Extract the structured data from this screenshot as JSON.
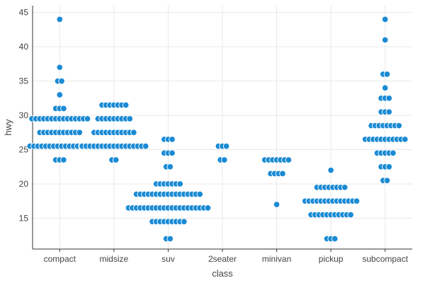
{
  "chart_data": {
    "type": "scatter",
    "subtype": "beeswarm",
    "title": "",
    "xlabel": "class",
    "ylabel": "hwy",
    "ylim": [
      10.5,
      46
    ],
    "yticks": [
      15,
      20,
      25,
      30,
      35,
      40,
      45
    ],
    "grid": true,
    "colors": {
      "point": "#1a8ad4",
      "point_edge": "#ffffff",
      "grid": "#e8e8e8",
      "axis": "#333333"
    },
    "categories": [
      "compact",
      "midsize",
      "suv",
      "2seater",
      "minivan",
      "pickup",
      "subcompact"
    ],
    "groups": [
      {
        "name": "compact",
        "values": [
          {
            "y": 44,
            "n": 1
          },
          {
            "y": 37,
            "n": 1
          },
          {
            "y": 35,
            "n": 2
          },
          {
            "y": 33,
            "n": 1
          },
          {
            "y": 31,
            "n": 3
          },
          {
            "y": 29.5,
            "n": 15
          },
          {
            "y": 27.5,
            "n": 11
          },
          {
            "y": 25.5,
            "n": 16
          },
          {
            "y": 23.5,
            "n": 3
          }
        ]
      },
      {
        "name": "midsize",
        "values": [
          {
            "y": 31.5,
            "n": 7
          },
          {
            "y": 29.5,
            "n": 9
          },
          {
            "y": 27.5,
            "n": 11
          },
          {
            "y": 25.5,
            "n": 17
          },
          {
            "y": 23.5,
            "n": 2
          }
        ]
      },
      {
        "name": "suv",
        "values": [
          {
            "y": 26.5,
            "n": 3
          },
          {
            "y": 24.5,
            "n": 3
          },
          {
            "y": 22.5,
            "n": 2
          },
          {
            "y": 20,
            "n": 7
          },
          {
            "y": 18.5,
            "n": 17
          },
          {
            "y": 16.5,
            "n": 21
          },
          {
            "y": 14.5,
            "n": 9
          },
          {
            "y": 12,
            "n": 2
          }
        ]
      },
      {
        "name": "2seater",
        "values": [
          {
            "y": 25.5,
            "n": 3
          },
          {
            "y": 23.5,
            "n": 2
          }
        ]
      },
      {
        "name": "minivan",
        "values": [
          {
            "y": 23.5,
            "n": 7
          },
          {
            "y": 21.5,
            "n": 4
          },
          {
            "y": 17,
            "n": 1
          }
        ]
      },
      {
        "name": "pickup",
        "values": [
          {
            "y": 22,
            "n": 1
          },
          {
            "y": 19.5,
            "n": 8
          },
          {
            "y": 17.5,
            "n": 14
          },
          {
            "y": 15.5,
            "n": 11
          },
          {
            "y": 12,
            "n": 3
          }
        ]
      },
      {
        "name": "subcompact",
        "values": [
          {
            "y": 44,
            "n": 1
          },
          {
            "y": 41,
            "n": 1
          },
          {
            "y": 36,
            "n": 2
          },
          {
            "y": 34,
            "n": 1
          },
          {
            "y": 32.5,
            "n": 3
          },
          {
            "y": 30.5,
            "n": 3
          },
          {
            "y": 28.5,
            "n": 8
          },
          {
            "y": 26.5,
            "n": 11
          },
          {
            "y": 24.5,
            "n": 5
          },
          {
            "y": 22.5,
            "n": 3
          },
          {
            "y": 20.5,
            "n": 2
          }
        ]
      }
    ]
  }
}
